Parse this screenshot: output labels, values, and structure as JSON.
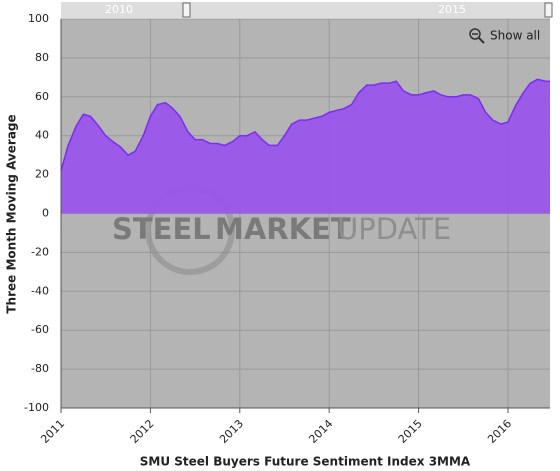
{
  "chart_data": {
    "type": "area",
    "title": "SMU Steel Buyers Future Sentiment Index 3MMA",
    "ylabel": "Three Month Moving Average",
    "watermark": [
      "STEEL",
      "MARKET",
      "UPDATE"
    ],
    "navigator": {
      "labels": [
        "2010",
        "2015"
      ]
    },
    "button": "Show all",
    "color": "#9a55ea",
    "line_color": "#7a2ef0",
    "x": [
      2011.0,
      2011.08,
      2011.17,
      2011.25,
      2011.33,
      2011.42,
      2011.5,
      2011.58,
      2011.67,
      2011.75,
      2011.83,
      2011.92,
      2012.0,
      2012.08,
      2012.17,
      2012.25,
      2012.33,
      2012.42,
      2012.5,
      2012.58,
      2012.67,
      2012.75,
      2012.83,
      2012.92,
      2013.0,
      2013.08,
      2013.17,
      2013.25,
      2013.33,
      2013.42,
      2013.5,
      2013.58,
      2013.67,
      2013.75,
      2013.83,
      2013.92,
      2014.0,
      2014.08,
      2014.17,
      2014.25,
      2014.33,
      2014.42,
      2014.5,
      2014.58,
      2014.67,
      2014.75,
      2014.83,
      2014.92,
      2015.0,
      2015.08,
      2015.17,
      2015.25,
      2015.33,
      2015.42,
      2015.5,
      2015.58,
      2015.67,
      2015.75,
      2015.83,
      2015.92,
      2016.0,
      2016.08,
      2016.17,
      2016.25,
      2016.33,
      2016.42,
      2016.47
    ],
    "values": [
      22,
      35,
      45,
      51,
      50,
      45,
      40,
      37,
      34,
      30,
      32,
      40,
      50,
      56,
      57,
      54,
      50,
      42,
      38,
      38,
      36,
      36,
      35,
      37,
      40,
      40,
      42,
      38,
      35,
      35,
      40,
      46,
      48,
      48,
      49,
      50,
      52,
      53,
      54,
      56,
      62,
      66,
      66,
      67,
      67,
      68,
      63,
      61,
      61,
      62,
      63,
      61,
      60,
      60,
      61,
      61,
      59,
      52,
      48,
      46,
      47,
      55,
      62,
      67,
      69,
      68,
      68
    ],
    "xlim": [
      2011,
      2016.47
    ],
    "xticks": [
      2011,
      2012,
      2013,
      2014,
      2015,
      2016
    ],
    "ylim": [
      -100,
      100
    ],
    "yticks": [
      -100,
      -80,
      -60,
      -40,
      -20,
      0,
      20,
      40,
      60,
      80,
      100
    ],
    "grid": true
  }
}
